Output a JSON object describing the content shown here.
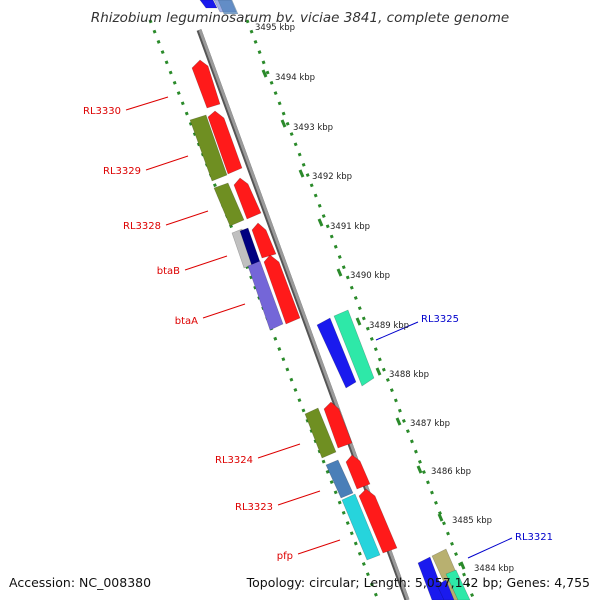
{
  "title": "Rhizobium leguminosarum bv. viciae 3841, complete genome",
  "footer": {
    "accession": "Accession: NC_008380",
    "topology": "Topology: circular; Length: 5,057,142 bp; Genes: 4,755"
  },
  "ticks": [
    {
      "label": "3495 kbp"
    },
    {
      "label": "3494 kbp"
    },
    {
      "label": "3493 kbp"
    },
    {
      "label": "3492 kbp"
    },
    {
      "label": "3491 kbp"
    },
    {
      "label": "3490 kbp"
    },
    {
      "label": "3489 kbp"
    },
    {
      "label": "3488 kbp"
    },
    {
      "label": "3487 kbp"
    },
    {
      "label": "3486 kbp"
    },
    {
      "label": "3485 kbp"
    },
    {
      "label": "3484 kbp"
    }
  ],
  "gene_labels": [
    {
      "text": "RL3330",
      "color": "#dd0000"
    },
    {
      "text": "RL3329",
      "color": "#dd0000"
    },
    {
      "text": "RL3328",
      "color": "#dd0000"
    },
    {
      "text": "btaB",
      "color": "#dd0000"
    },
    {
      "text": "btaA",
      "color": "#dd0000"
    },
    {
      "text": "RL3325",
      "color": "#0000cc"
    },
    {
      "text": "RL3324",
      "color": "#dd0000"
    },
    {
      "text": "RL3323",
      "color": "#dd0000"
    },
    {
      "text": "pfp",
      "color": "#dd0000"
    },
    {
      "text": "RL3321",
      "color": "#0000cc"
    }
  ],
  "colors": {
    "backbone": "#8a8a8a",
    "dots": "#2a8a2a",
    "red": "#ff1a1a",
    "olive": "#6f8f22",
    "blue": "#1a1aee",
    "green_cyan": "#2ee8a8",
    "cyan": "#26d4dc",
    "steel": "#4a7fb8",
    "violet": "#7466d8",
    "navy": "#000080",
    "tan": "#b8b070",
    "silver": "#c0c0c0"
  }
}
